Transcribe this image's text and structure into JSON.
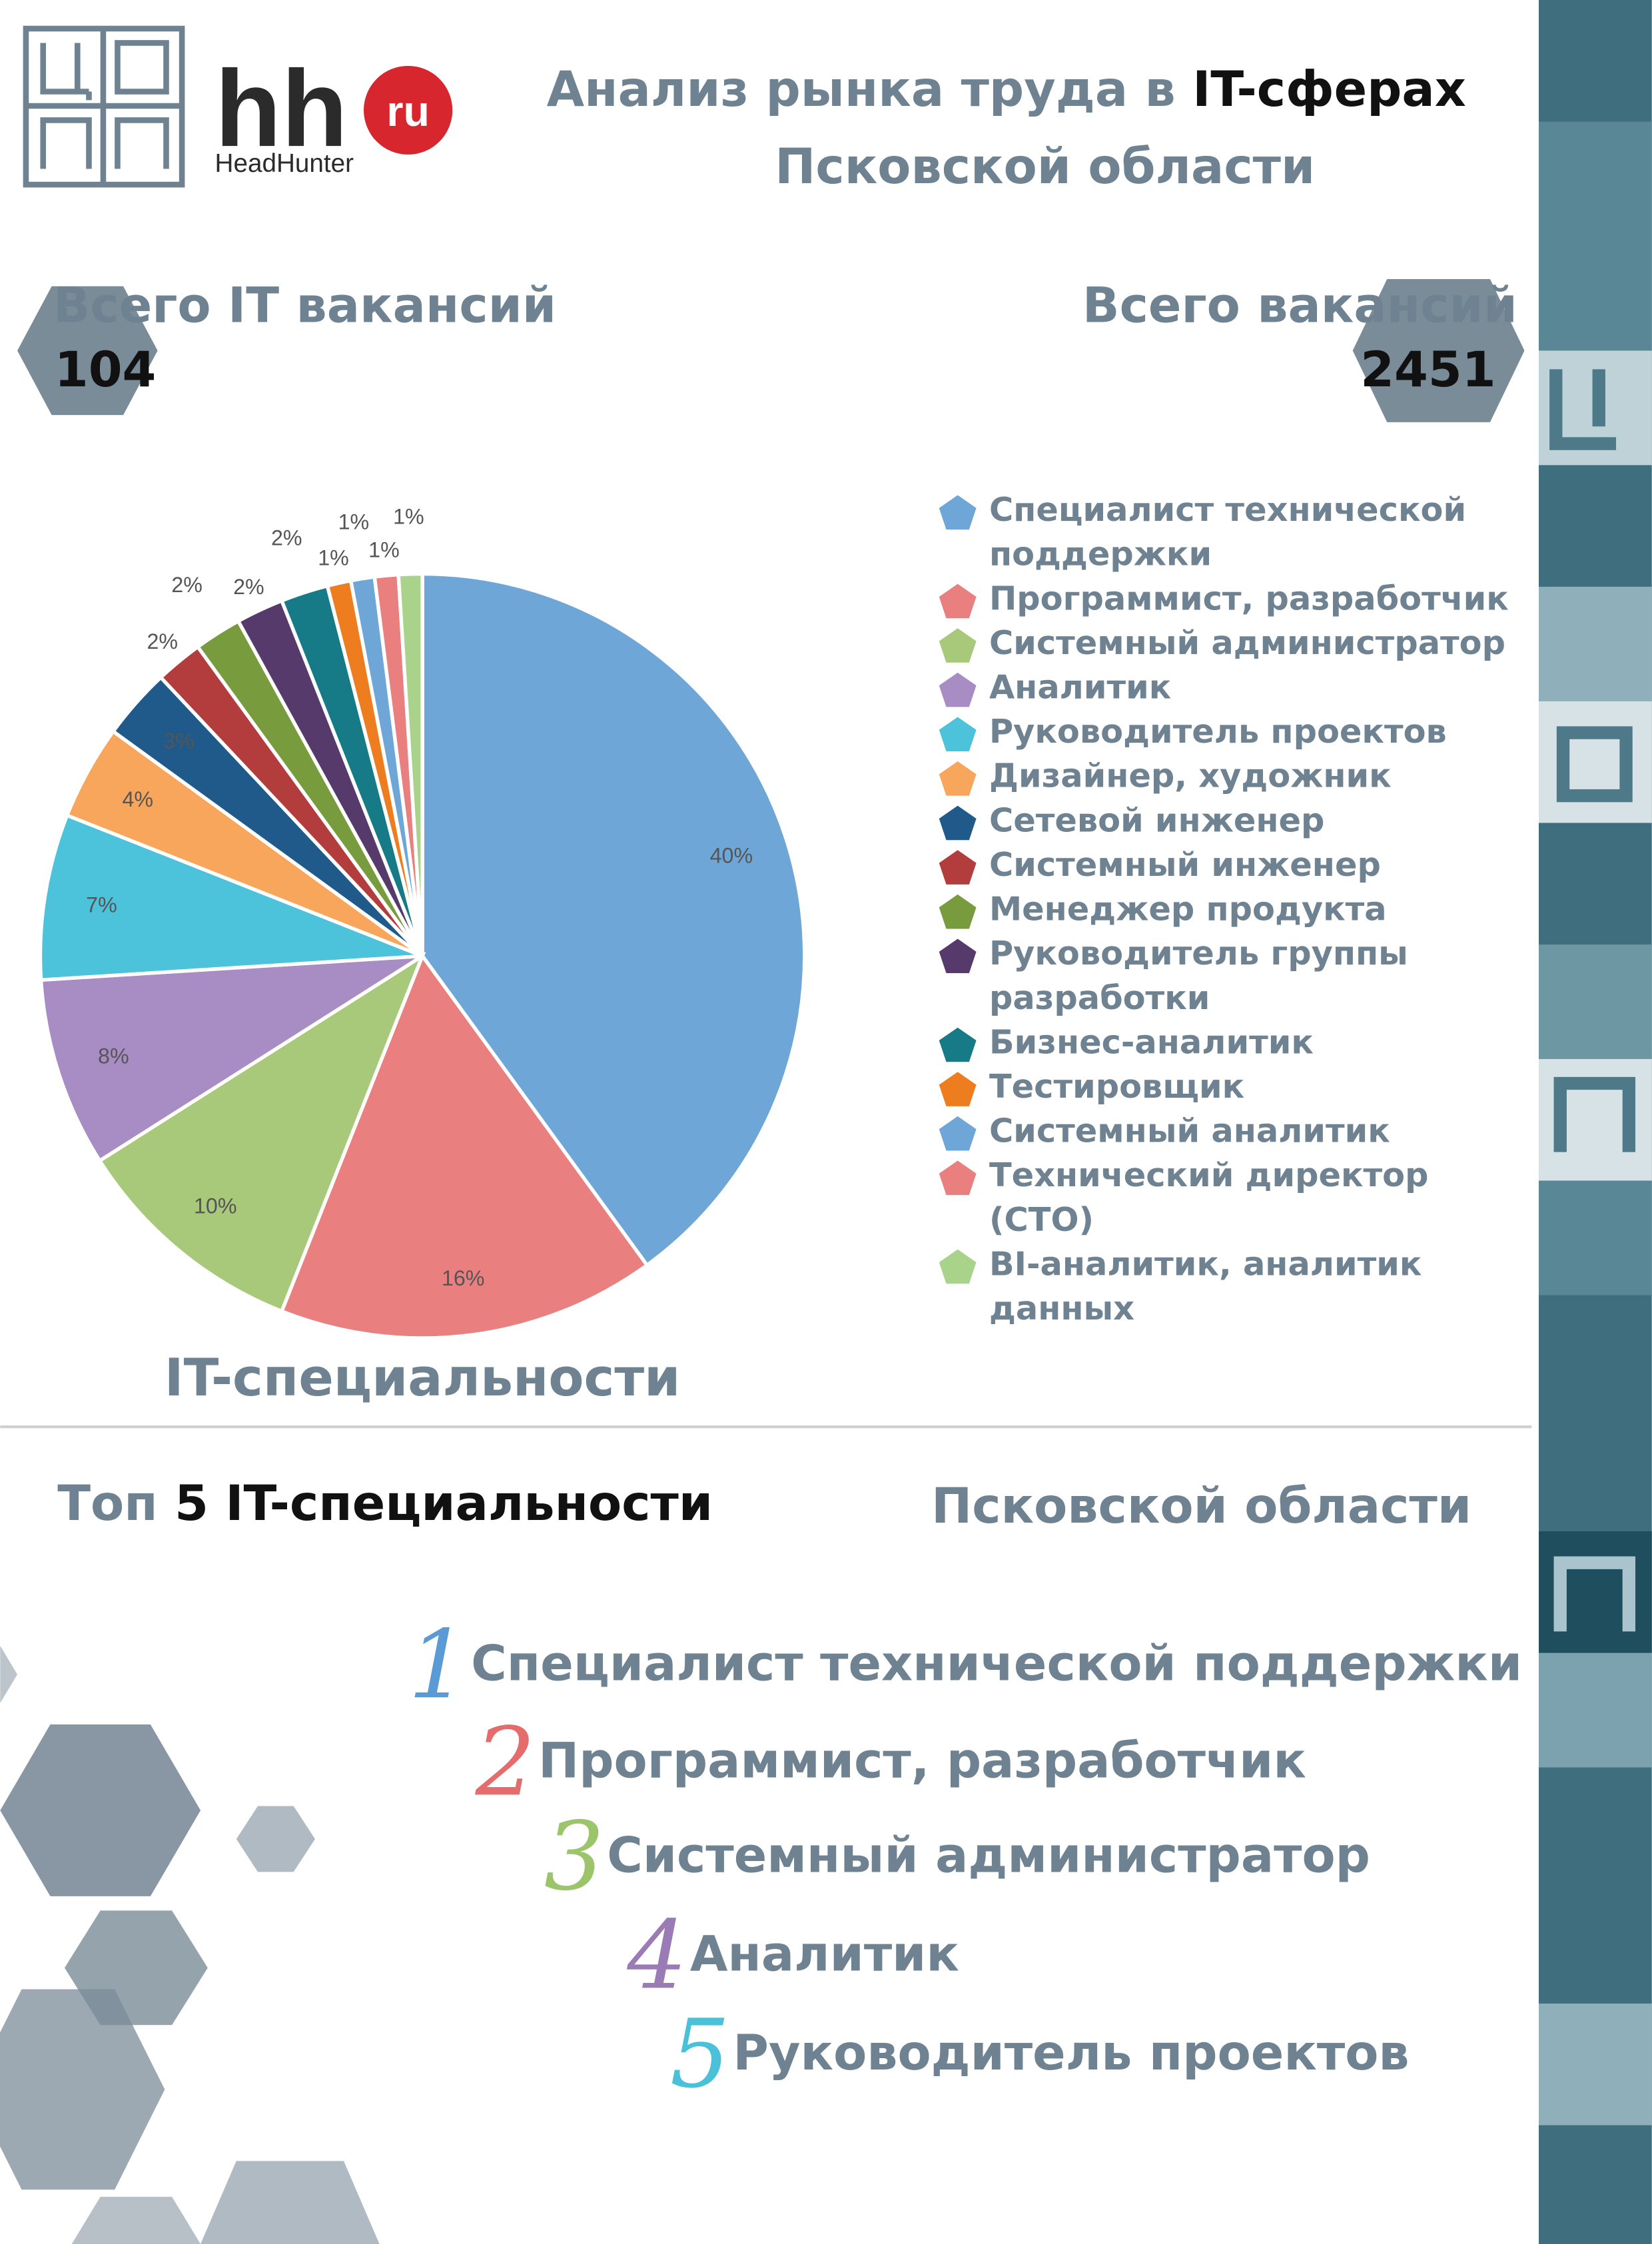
{
  "header": {
    "title_part": "Анализ рынка труда в ",
    "title_bold": "IT-сферах",
    "title_line2": "Псковской области"
  },
  "logo": {
    "brand": "hh",
    "domain": "ru",
    "name": "HeadHunter"
  },
  "stats": {
    "it_label": "Всего IT вакансий",
    "it_value": "104",
    "all_label": "Всего вакансий",
    "all_value": "2451"
  },
  "chart_data": {
    "type": "pie",
    "title": "IT-специальности",
    "categories": [
      "Специалист технической поддержки",
      "Программист, разработчик",
      "Системный администратор",
      "Аналитик",
      "Руководитель проектов",
      "Дизайнер, художник",
      "Сетевой инженер",
      "Системный инженер",
      "Менеджер продукта",
      "Руководитель группы разработки",
      "Бизнес-аналитик",
      "Тестировщик",
      "Системный аналитик",
      "Технический директор (CTO)",
      "BI-аналитик, аналитик данных"
    ],
    "values": [
      40,
      16,
      10,
      8,
      7,
      4,
      3,
      2,
      2,
      2,
      2,
      1,
      1,
      1,
      1
    ],
    "value_labels": [
      "40%",
      "16%",
      "10%",
      "8%",
      "7%",
      "4%",
      "3%",
      "2%",
      "2%",
      "2%",
      "2%",
      "1%",
      "1%",
      "1%",
      "1%"
    ],
    "colors": [
      "#6ea6d8",
      "#e97f7f",
      "#a9c97a",
      "#a88cc4",
      "#4cc3db",
      "#f7a65c",
      "#1f5a8a",
      "#b33c3c",
      "#779b3d",
      "#563a6b",
      "#167b87",
      "#ee7d1f",
      "#6ea6d8",
      "#e97f7f",
      "#a9d38b"
    ]
  },
  "top5": {
    "title_part": "Топ ",
    "title_bold": "5 IT-специальности",
    "region": "Псковской области",
    "items": [
      {
        "rank": "1",
        "name": "Специалист технической поддержки"
      },
      {
        "rank": "2",
        "name": "Программист, разработчик"
      },
      {
        "rank": "3",
        "name": "Системный администратор"
      },
      {
        "rank": "4",
        "name": "Аналитик"
      },
      {
        "rank": "5",
        "name": "Руководитель проектов"
      }
    ]
  }
}
